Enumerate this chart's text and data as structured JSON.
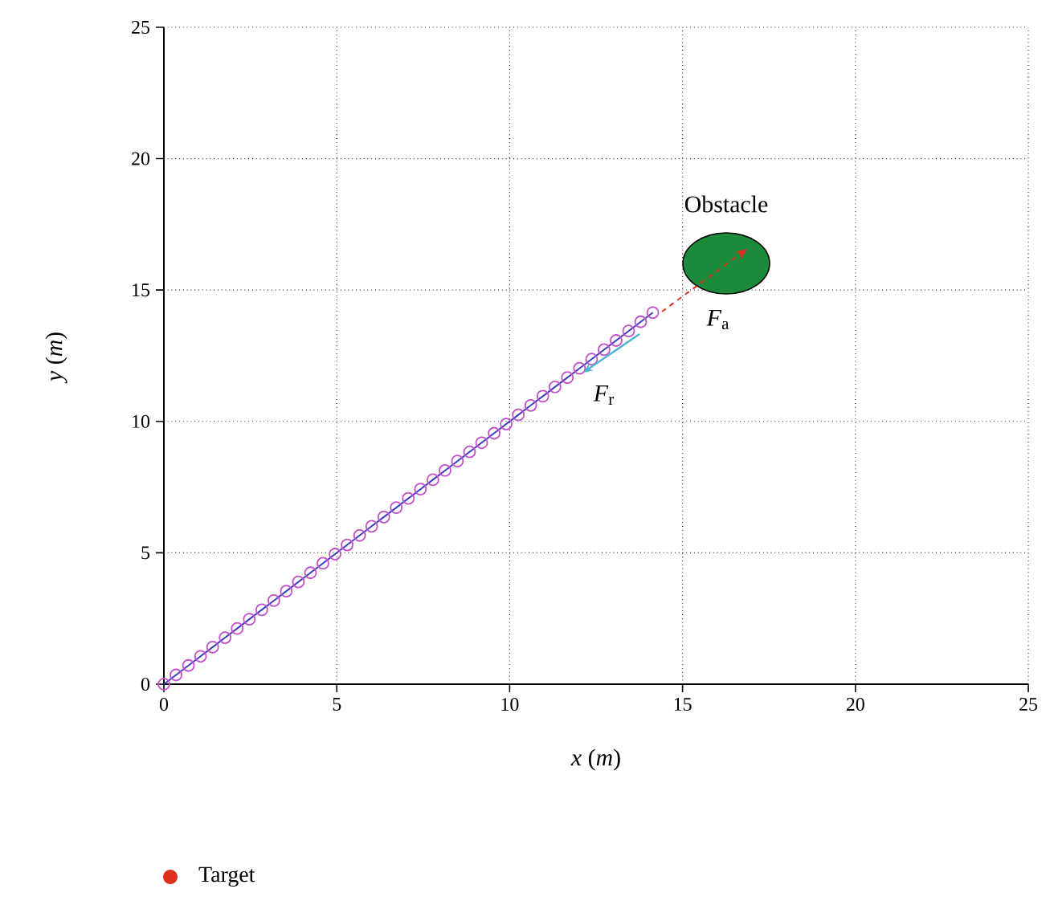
{
  "chart_data": {
    "type": "scatter",
    "xlabel": "*x* (*m*)",
    "ylabel": "*y* (*m*)",
    "xlim": [
      0,
      25
    ],
    "ylim": [
      0,
      25
    ],
    "xticks": [
      0,
      5,
      10,
      15,
      20,
      25
    ],
    "yticks": [
      0,
      5,
      10,
      15,
      20,
      25
    ],
    "grid": true,
    "legend": "bottom left",
    "series": [
      {
        "type": "line",
        "color": "#3c3cc0",
        "marker": "none",
        "x": [
          0,
          0.35,
          0.71,
          1.06,
          1.41,
          1.77,
          2.12,
          2.47,
          2.83,
          3.18,
          3.54,
          3.89,
          4.24,
          4.6,
          4.95,
          5.3,
          5.66,
          6.01,
          6.36,
          6.72,
          7.07,
          7.42,
          7.78,
          8.13,
          8.49,
          8.84,
          9.19,
          9.55,
          9.9,
          10.25,
          10.61,
          10.96,
          11.31,
          11.67,
          12.02,
          12.37,
          12.73,
          13.08,
          13.44,
          13.79,
          14.14
        ],
        "values": [
          0,
          0.35,
          0.71,
          1.06,
          1.41,
          1.77,
          2.12,
          2.47,
          2.83,
          3.18,
          3.54,
          3.89,
          4.24,
          4.6,
          4.95,
          5.3,
          5.66,
          6.01,
          6.36,
          6.72,
          7.07,
          7.42,
          7.78,
          8.13,
          8.49,
          8.84,
          9.19,
          9.55,
          9.9,
          10.25,
          10.61,
          10.96,
          11.31,
          11.67,
          12.02,
          12.37,
          12.73,
          13.08,
          13.44,
          13.79,
          14.14
        ]
      },
      {
        "color": "#c24fc8",
        "marker": "circle",
        "x": [
          0,
          0.35,
          0.71,
          1.06,
          1.41,
          1.77,
          2.12,
          2.47,
          2.83,
          3.18,
          3.54,
          3.89,
          4.24,
          4.6,
          4.95,
          5.3,
          5.66,
          6.01,
          6.36,
          6.72,
          7.07,
          7.42,
          7.78,
          8.13,
          8.49,
          8.84,
          9.19,
          9.55,
          9.9,
          10.25,
          10.61,
          10.96,
          11.31,
          11.67,
          12.02,
          12.37,
          12.73,
          13.08,
          13.44,
          13.79,
          14.14
        ],
        "values": [
          0,
          0.35,
          0.71,
          1.06,
          1.41,
          1.77,
          2.12,
          2.47,
          2.83,
          3.18,
          3.54,
          3.89,
          4.24,
          4.6,
          4.95,
          5.3,
          5.66,
          6.01,
          6.36,
          6.72,
          7.07,
          7.42,
          7.78,
          8.13,
          8.49,
          8.84,
          9.19,
          9.55,
          9.9,
          10.25,
          10.61,
          10.96,
          11.31,
          11.67,
          12.02,
          12.37,
          12.73,
          13.08,
          13.44,
          13.79,
          14.14
        ]
      },
      {
        "type": "scatter",
        "name": "Target",
        "color": "#e0301e",
        "marker": "circle"
      }
    ],
    "annotations": [
      "Obstacle",
      "*F*$_{a}$",
      "*F*$_{r}$"
    ]
  }
}
